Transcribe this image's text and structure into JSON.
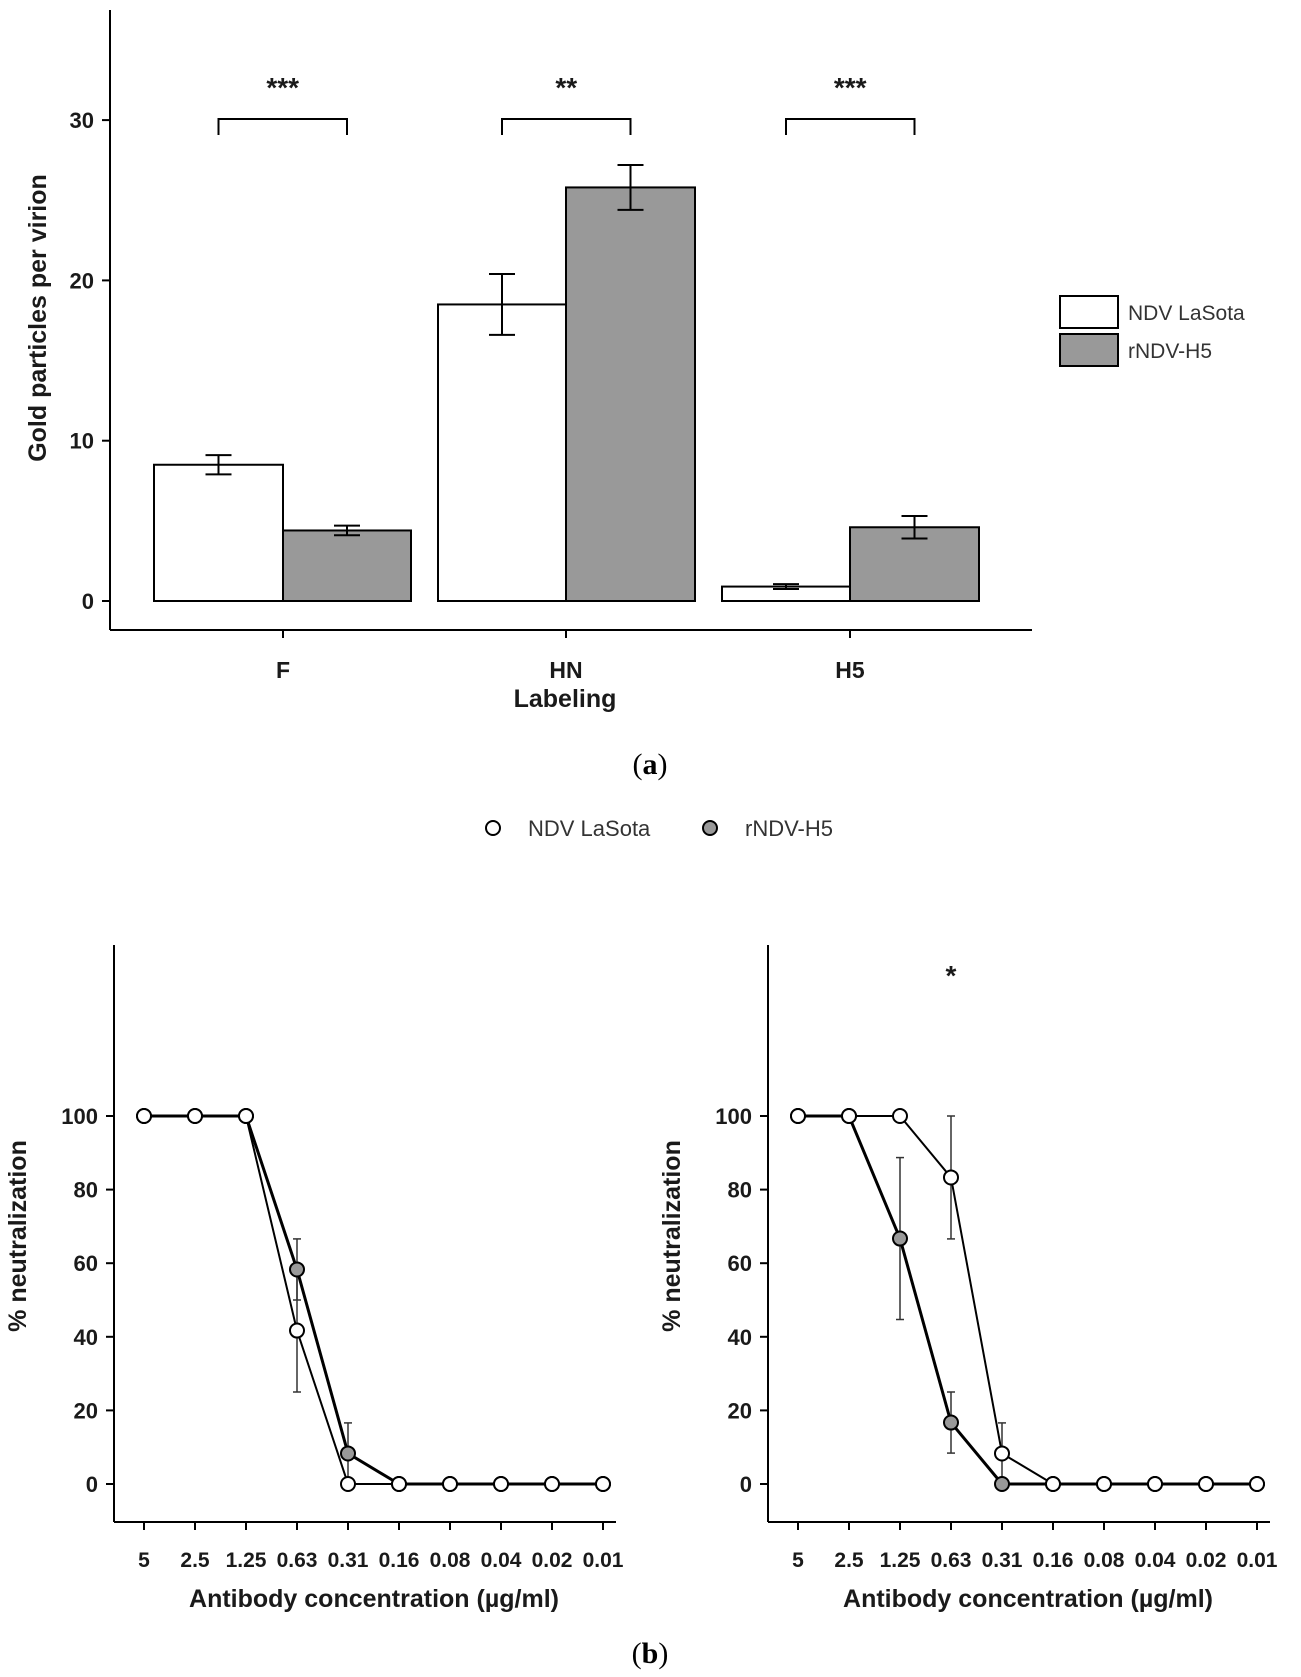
{
  "colors": {
    "series1_fill": "#ffffff",
    "series2_fill": "#999999",
    "stroke": "#000000"
  },
  "panel_a": {
    "label_open": "(",
    "label_letter": "a",
    "label_close": ")"
  },
  "panel_b": {
    "label_open": "(",
    "label_letter": "b",
    "label_close": ")"
  },
  "legend_b": {
    "items": [
      "NDV LaSota",
      "rNDV-H5"
    ]
  },
  "chart_data": [
    {
      "type": "bar",
      "title": "",
      "xlabel": "Labeling",
      "ylabel": "Gold particles per virion",
      "categories": [
        "F",
        "HN",
        "H5"
      ],
      "ylim": [
        0,
        36
      ],
      "yticks": [
        0,
        10,
        20,
        30
      ],
      "legend_position": "right",
      "series": [
        {
          "name": "NDV LaSota",
          "color": "#ffffff",
          "values": [
            8.5,
            18.5,
            0.9
          ],
          "errors": [
            0.6,
            1.9,
            0.15
          ]
        },
        {
          "name": "rNDV-H5",
          "color": "#999999",
          "values": [
            4.4,
            25.8,
            4.6
          ],
          "errors": [
            0.3,
            1.4,
            0.7
          ]
        }
      ],
      "annotations": [
        {
          "category": "F",
          "text": "***"
        },
        {
          "category": "HN",
          "text": "**"
        },
        {
          "category": "H5",
          "text": "***"
        }
      ]
    },
    {
      "type": "line",
      "title": "",
      "xlabel": "Antibody concentration (µg/ml)",
      "ylabel": "% neutralization",
      "categories": [
        "5",
        "2.5",
        "1.25",
        "0.63",
        "0.31",
        "0.16",
        "0.08",
        "0.04",
        "0.02",
        "0.01"
      ],
      "ylim": [
        0,
        110
      ],
      "yticks": [
        0,
        20,
        40,
        60,
        80,
        100
      ],
      "series": [
        {
          "name": "NDV LaSota",
          "marker": "open",
          "values": [
            100,
            100,
            100,
            41.7,
            0,
            0,
            0,
            0,
            0,
            0
          ],
          "errors": [
            0,
            0,
            0,
            16.7,
            0,
            0,
            0,
            0,
            0,
            0
          ]
        },
        {
          "name": "rNDV-H5",
          "marker": "filled",
          "values": [
            100,
            100,
            100,
            58.3,
            8.3,
            0,
            0,
            0,
            0,
            0
          ],
          "errors": [
            0,
            0,
            0,
            8.3,
            8.3,
            0,
            0,
            0,
            0,
            0
          ]
        }
      ],
      "annotations": []
    },
    {
      "type": "line",
      "title": "",
      "xlabel": "Antibody concentration (µg/ml)",
      "ylabel": "% neutralization",
      "categories": [
        "5",
        "2.5",
        "1.25",
        "0.63",
        "0.31",
        "0.16",
        "0.08",
        "0.04",
        "0.02",
        "0.01"
      ],
      "ylim": [
        0,
        110
      ],
      "yticks": [
        0,
        20,
        40,
        60,
        80,
        100
      ],
      "series": [
        {
          "name": "NDV LaSota",
          "marker": "open",
          "values": [
            100,
            100,
            100,
            83.3,
            8.3,
            0,
            0,
            0,
            0,
            0
          ],
          "errors": [
            0,
            0,
            0,
            16.7,
            8.3,
            0,
            0,
            0,
            0,
            0
          ]
        },
        {
          "name": "rNDV-H5",
          "marker": "filled",
          "values": [
            100,
            100,
            66.7,
            16.7,
            0,
            0,
            0,
            0,
            0,
            0
          ],
          "errors": [
            0,
            0,
            22.0,
            8.3,
            0,
            0,
            0,
            0,
            0,
            0
          ]
        }
      ],
      "annotations": [
        {
          "category": "0.63",
          "text": "*"
        }
      ]
    }
  ]
}
